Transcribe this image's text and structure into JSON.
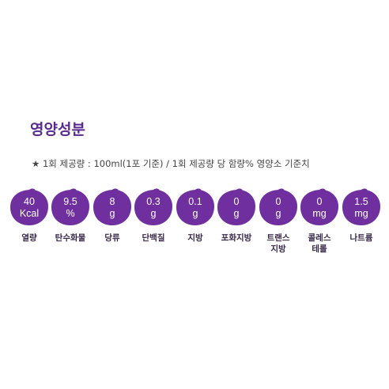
{
  "header": {
    "title": "영양성분",
    "note": "★ 1회 제공량 : 100ml(1포 기준) / 1회 제공량 당 함량% 영양소 기준치"
  },
  "colors": {
    "title": "#5b2a8e",
    "blob": "#6f2f9e",
    "blob_highlight": "#8a4bb8"
  },
  "nutrients": [
    {
      "value": "40",
      "unit": "Kcal",
      "label1": "열량",
      "label2": ""
    },
    {
      "value": "9.5",
      "unit": "%",
      "label1": "탄수화물",
      "label2": ""
    },
    {
      "value": "8",
      "unit": "g",
      "label1": "당류",
      "label2": ""
    },
    {
      "value": "0.3",
      "unit": "g",
      "label1": "단백질",
      "label2": ""
    },
    {
      "value": "0.1",
      "unit": "g",
      "label1": "지방",
      "label2": ""
    },
    {
      "value": "0",
      "unit": "g",
      "label1": "포화지방",
      "label2": ""
    },
    {
      "value": "0",
      "unit": "g",
      "label1": "트랜스",
      "label2": "지방"
    },
    {
      "value": "0",
      "unit": "mg",
      "label1": "콜레스",
      "label2": "테롤"
    },
    {
      "value": "1.5",
      "unit": "mg",
      "label1": "나트륨",
      "label2": ""
    }
  ]
}
